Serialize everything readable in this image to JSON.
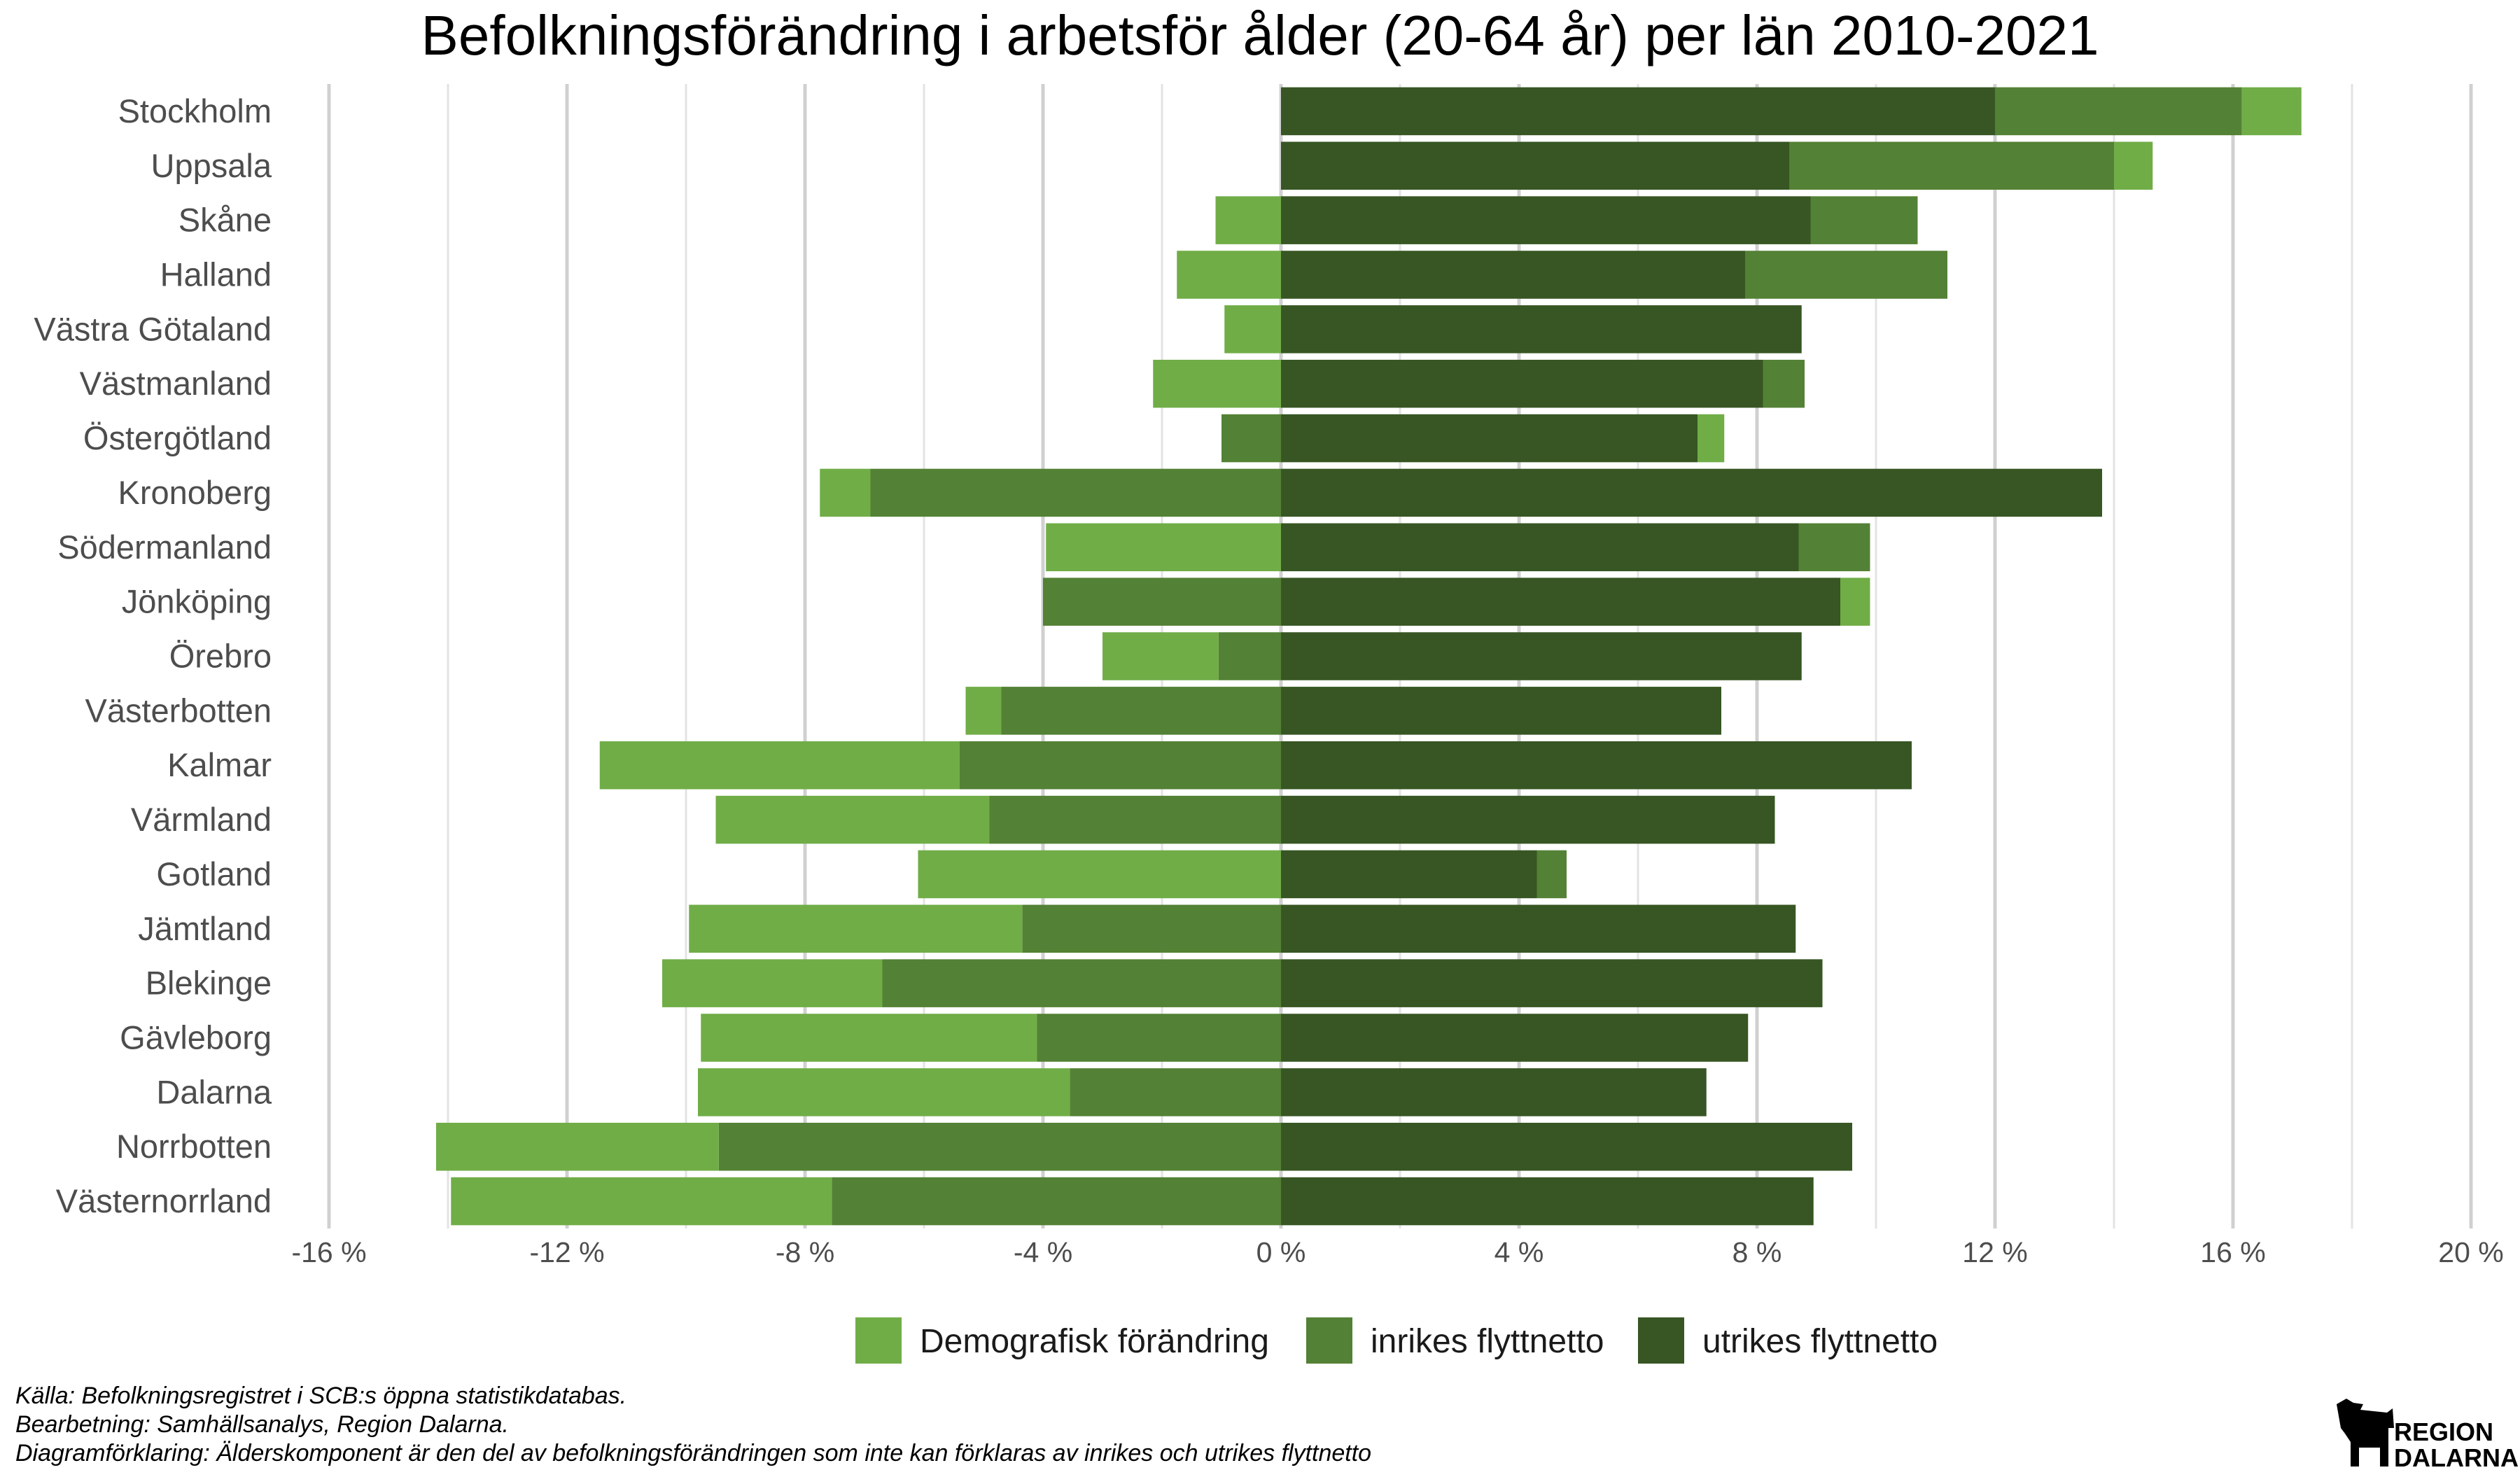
{
  "chart_data": {
    "type": "bar",
    "orientation": "horizontal",
    "stacked": "diverging",
    "title": "Befolkningsförändring i arbetsför ålder (20-64 år) per län 2010-2021",
    "x_unit": "%",
    "xlim": [
      -16,
      20
    ],
    "x_ticks": [
      -16,
      -12,
      -8,
      -4,
      0,
      4,
      8,
      12,
      16,
      20
    ],
    "x_tick_labels": [
      "-16 %",
      "-12 %",
      "-8 %",
      "-4 %",
      "0 %",
      "4 %",
      "8 %",
      "12 %",
      "16 %",
      "20 %"
    ],
    "grid": "vertical",
    "legend_position": "bottom",
    "categories": [
      "Stockholm",
      "Uppsala",
      "Skåne",
      "Halland",
      "Västra Götaland",
      "Västmanland",
      "Östergötland",
      "Kronoberg",
      "Södermanland",
      "Jönköping",
      "Örebro",
      "Västerbotten",
      "Kalmar",
      "Värmland",
      "Gotland",
      "Jämtland",
      "Blekinge",
      "Gävleborg",
      "Dalarna",
      "Norrbotten",
      "Västernorrland"
    ],
    "series": [
      {
        "name": "utrikes flyttnetto",
        "color": "#375623",
        "values": [
          12.0,
          8.55,
          8.9,
          7.8,
          8.75,
          8.1,
          7.0,
          13.8,
          8.7,
          9.4,
          8.75,
          7.4,
          10.6,
          8.3,
          4.3,
          8.65,
          9.1,
          7.85,
          7.15,
          9.6,
          8.95
        ]
      },
      {
        "name": "inrikes flyttnetto",
        "color": "#538135",
        "values": [
          4.15,
          5.45,
          1.8,
          3.4,
          0.0,
          0.7,
          -1.0,
          -6.9,
          1.2,
          -4.0,
          -1.05,
          -4.7,
          -5.4,
          -4.9,
          0.5,
          -4.35,
          -6.7,
          -4.1,
          -3.55,
          -9.45,
          -7.55
        ]
      },
      {
        "name": "Demografisk förändring",
        "color": "#70AD47",
        "values": [
          1.0,
          0.65,
          -1.1,
          -1.75,
          -0.95,
          -2.15,
          0.45,
          -0.85,
          -3.95,
          0.5,
          -1.95,
          -0.6,
          -6.05,
          -4.6,
          -6.1,
          -5.6,
          -3.7,
          -5.65,
          -6.25,
          -4.75,
          -6.4
        ]
      }
    ],
    "legend": [
      "Demografisk förändring",
      "inrikes flyttnetto",
      "utrikes flyttnetto"
    ]
  },
  "footnotes": [
    "Källa: Befolkningsregistret i SCB:s öppna statistikdatabas.",
    "Bearbetning: Samhällsanalys, Region Dalarna.",
    "Diagramförklaring: Älderskomponent är den del av befolkningsförändringen som inte kan förklaras av inrikes och utrikes flyttnetto"
  ],
  "logo": {
    "line1": "REGION",
    "line2": "DALARNA"
  }
}
